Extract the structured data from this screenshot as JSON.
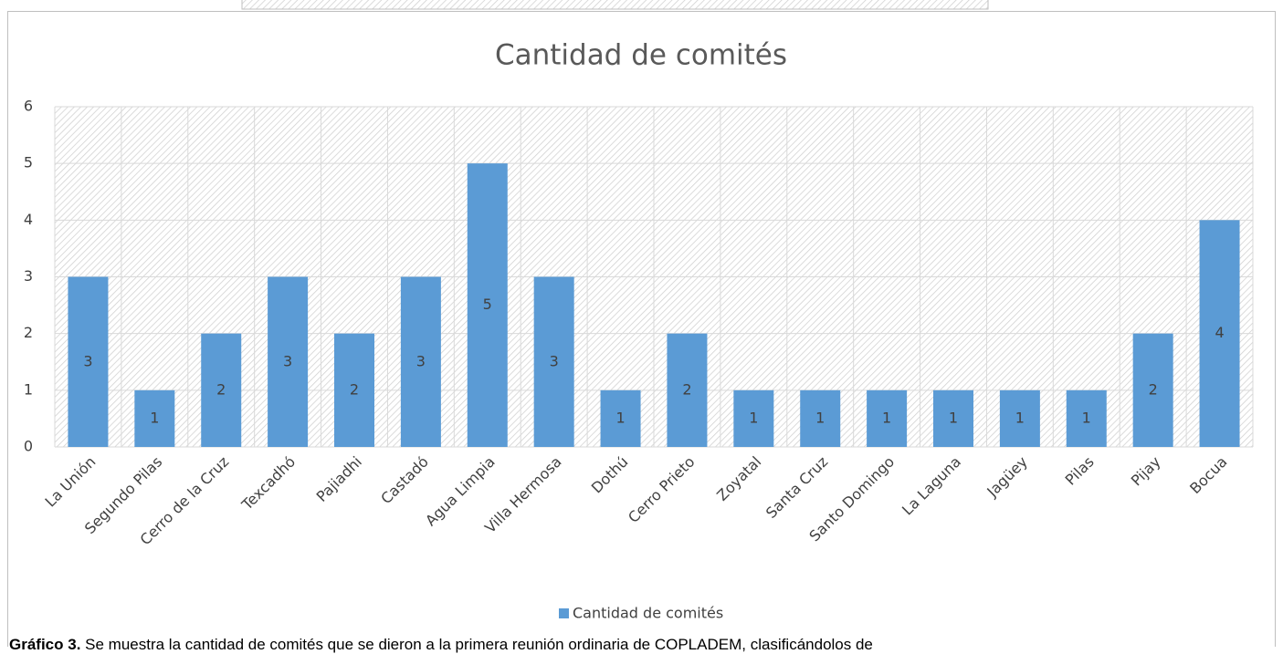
{
  "chart_data": {
    "type": "bar",
    "title": "Cantidad de comités",
    "categories": [
      "La Unión",
      "Segundo Pilas",
      "Cerro de la Cruz",
      "Texcadhó",
      "Pajiadhi",
      "Castadó",
      "Agua Limpia",
      "Villa Hermosa",
      "Dothú",
      "Cerro Prieto",
      "Zoyatal",
      "Santa Cruz",
      "Santo Domingo",
      "La Laguna",
      "Jagüey",
      "Pilas",
      "Pijay",
      "Bocua"
    ],
    "series": [
      {
        "name": "Cantidad de comités",
        "color": "#5b9bd5",
        "values": [
          3,
          1,
          2,
          3,
          2,
          3,
          5,
          3,
          1,
          2,
          1,
          1,
          1,
          1,
          1,
          1,
          2,
          4
        ]
      }
    ],
    "ylim": [
      0,
      6
    ],
    "yticks": [
      0,
      1,
      2,
      3,
      4,
      5,
      6
    ],
    "grid": true,
    "legend": "bottom"
  },
  "caption": {
    "label": "Gráfico 3.",
    "text": "Se muestra la cantidad de comités que se dieron a la primera reunión ordinaria de COPLADEM, clasificándolos de"
  }
}
